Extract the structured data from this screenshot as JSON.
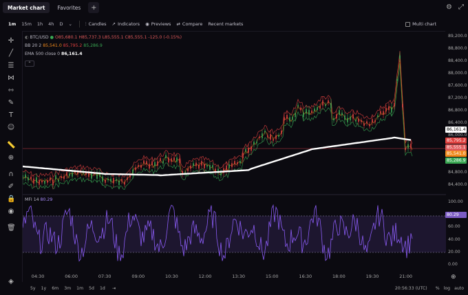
{
  "topbar": {
    "tabs": [
      {
        "label": "Market chart",
        "active": true
      },
      {
        "label": "Favorites",
        "active": false
      }
    ],
    "add_label": "+",
    "settings_icon": "gear-icon",
    "expand_icon": "expand-icon"
  },
  "toolbar": {
    "timeframes": [
      "1m",
      "15m",
      "1h",
      "4h",
      "D"
    ],
    "active_timeframe": "1m",
    "candles_label": "Candles",
    "indicators_label": "Indicators",
    "previews_label": "Previews",
    "compare_label": "Compare",
    "recent_label": "Recent markets",
    "multichart_label": "Multi chart"
  },
  "legend": {
    "symbol": "BTC/USD",
    "ohlc": "O85,680.1 H85,737.3 L85,555.1 C85,555.1 -125.0 (-0.15%)",
    "bb_label": "BB 20 2",
    "bb_mid": "85,541.0",
    "bb_upper": "85,795.2",
    "bb_lower": "85,286.9",
    "ema_label": "EMA 500 close 0",
    "ema_value": "86,161.4",
    "mfi_label": "MFI 14",
    "mfi_value": "80.29"
  },
  "yaxis": {
    "price_ticks": [
      "89,200.0",
      "88,800.0",
      "88,400.0",
      "88,000.0",
      "87,600.0",
      "87,200.0",
      "86,800.0",
      "86,400.0",
      "86,000.0",
      "85,600.0",
      "85,200.0",
      "84,800.0",
      "84,400.0"
    ],
    "price_labels": [
      {
        "text": "86,161.4",
        "color": "#ffffff",
        "fg": "#000000"
      },
      {
        "text": "85,795.2",
        "color": "#e0413f",
        "fg": "#ffffff"
      },
      {
        "text": "85,555.1",
        "color": "#e05a5a",
        "fg": "#ffffff"
      },
      {
        "text": "85,541.0",
        "color": "#f08a1c",
        "fg": "#ffffff"
      },
      {
        "text": "85,286.9",
        "color": "#3aa853",
        "fg": "#ffffff"
      }
    ],
    "mfi_ticks": [
      "100.00",
      "80.00",
      "60.00",
      "40.00",
      "20.00",
      "0.00"
    ],
    "mfi_label": "80.29"
  },
  "xaxis": {
    "ticks": [
      "04:30",
      "06:00",
      "07:30",
      "09:00",
      "10:30",
      "12:00",
      "13:30",
      "15:00",
      "16:30",
      "18:00",
      "19:30",
      "21:00"
    ]
  },
  "bottom": {
    "ranges": [
      "5y",
      "1y",
      "6m",
      "3m",
      "1m",
      "5d",
      "1d"
    ],
    "time": "20:56:33 (UTC)",
    "pct": "%",
    "log": "log",
    "auto": "auto"
  },
  "colors": {
    "background": "#0b0a10",
    "ema": "#ffffff",
    "bb_upper": "#e0413f",
    "bb_lower": "#3aa853",
    "bb_mid": "#f08a1c",
    "mfi": "#8b5cf6"
  }
}
